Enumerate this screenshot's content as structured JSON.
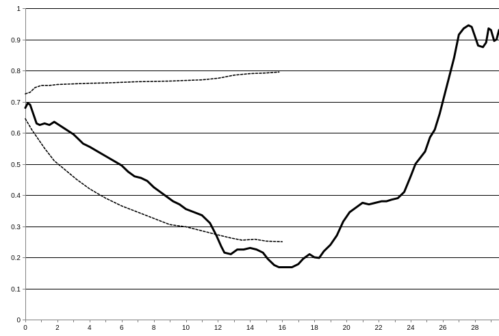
{
  "chart_data": {
    "type": "line",
    "title": "",
    "xlabel": "",
    "ylabel": "",
    "xlim": [
      0,
      29.5
    ],
    "ylim": [
      0,
      1
    ],
    "grid": "horizontal",
    "legend": "none",
    "x_ticks": [
      0,
      2,
      4,
      6,
      8,
      10,
      12,
      14,
      16,
      18,
      20,
      22,
      24,
      26,
      28
    ],
    "y_ticks": [
      0,
      0.1,
      0.2,
      0.3,
      0.4,
      0.5,
      0.6,
      0.7,
      0.8,
      0.9,
      1
    ],
    "x_tick_labels": [
      "0",
      "2",
      "4",
      "6",
      "8",
      "10",
      "12",
      "14",
      "16",
      "18",
      "20",
      "22",
      "24",
      "26",
      "28"
    ],
    "y_tick_labels": [
      "0",
      "0.1",
      "0.2",
      "0.3",
      "0.4",
      "0.5",
      "0.6",
      "0.7",
      "0.8",
      "0.9",
      "1"
    ],
    "colors": {
      "series": "#000000",
      "grid": "#000000",
      "axis": "#808080",
      "background": "#ffffff"
    },
    "series": [
      {
        "style": "solid",
        "points": [
          [
            0,
            0.68
          ],
          [
            0.15,
            0.695
          ],
          [
            0.3,
            0.69
          ],
          [
            0.5,
            0.66
          ],
          [
            0.7,
            0.63
          ],
          [
            0.9,
            0.625
          ],
          [
            1.2,
            0.63
          ],
          [
            1.5,
            0.625
          ],
          [
            1.8,
            0.635
          ],
          [
            2.1,
            0.625
          ],
          [
            2.4,
            0.615
          ],
          [
            2.7,
            0.605
          ],
          [
            3.0,
            0.595
          ],
          [
            3.3,
            0.58
          ],
          [
            3.6,
            0.565
          ],
          [
            4.0,
            0.555
          ],
          [
            4.5,
            0.54
          ],
          [
            5.0,
            0.525
          ],
          [
            5.5,
            0.51
          ],
          [
            6.0,
            0.495
          ],
          [
            6.4,
            0.475
          ],
          [
            6.8,
            0.46
          ],
          [
            7.2,
            0.455
          ],
          [
            7.6,
            0.445
          ],
          [
            8.0,
            0.425
          ],
          [
            8.4,
            0.41
          ],
          [
            8.8,
            0.395
          ],
          [
            9.2,
            0.38
          ],
          [
            9.6,
            0.37
          ],
          [
            10.0,
            0.355
          ],
          [
            10.5,
            0.345
          ],
          [
            11.0,
            0.335
          ],
          [
            11.5,
            0.31
          ],
          [
            11.9,
            0.27
          ],
          [
            12.2,
            0.235
          ],
          [
            12.4,
            0.215
          ],
          [
            12.8,
            0.21
          ],
          [
            13.2,
            0.225
          ],
          [
            13.6,
            0.225
          ],
          [
            14.0,
            0.23
          ],
          [
            14.4,
            0.225
          ],
          [
            14.8,
            0.215
          ],
          [
            15.1,
            0.195
          ],
          [
            15.5,
            0.175
          ],
          [
            15.8,
            0.168
          ],
          [
            16.2,
            0.168
          ],
          [
            16.6,
            0.168
          ],
          [
            17.0,
            0.178
          ],
          [
            17.3,
            0.195
          ],
          [
            17.7,
            0.21
          ],
          [
            18.0,
            0.2
          ],
          [
            18.3,
            0.198
          ],
          [
            18.6,
            0.22
          ],
          [
            19.0,
            0.24
          ],
          [
            19.4,
            0.27
          ],
          [
            19.8,
            0.315
          ],
          [
            20.2,
            0.345
          ],
          [
            20.6,
            0.36
          ],
          [
            21.0,
            0.375
          ],
          [
            21.4,
            0.37
          ],
          [
            21.8,
            0.375
          ],
          [
            22.2,
            0.38
          ],
          [
            22.5,
            0.38
          ],
          [
            22.8,
            0.385
          ],
          [
            23.2,
            0.39
          ],
          [
            23.6,
            0.41
          ],
          [
            24.0,
            0.46
          ],
          [
            24.3,
            0.5
          ],
          [
            24.6,
            0.52
          ],
          [
            24.9,
            0.54
          ],
          [
            25.2,
            0.585
          ],
          [
            25.5,
            0.61
          ],
          [
            25.8,
            0.66
          ],
          [
            26.1,
            0.72
          ],
          [
            26.4,
            0.78
          ],
          [
            26.7,
            0.84
          ],
          [
            27.0,
            0.915
          ],
          [
            27.3,
            0.935
          ],
          [
            27.6,
            0.945
          ],
          [
            27.8,
            0.94
          ],
          [
            28.0,
            0.91
          ],
          [
            28.2,
            0.88
          ],
          [
            28.5,
            0.875
          ],
          [
            28.7,
            0.89
          ],
          [
            28.85,
            0.935
          ],
          [
            29.0,
            0.93
          ],
          [
            29.2,
            0.895
          ],
          [
            29.35,
            0.9
          ],
          [
            29.5,
            0.93
          ]
        ]
      },
      {
        "style": "dotted",
        "points": [
          [
            0,
            0.725
          ],
          [
            0.3,
            0.73
          ],
          [
            0.6,
            0.745
          ],
          [
            1.0,
            0.752
          ],
          [
            1.5,
            0.752
          ],
          [
            2.0,
            0.755
          ],
          [
            3.0,
            0.757
          ],
          [
            4.0,
            0.759
          ],
          [
            5.0,
            0.76
          ],
          [
            6.0,
            0.762
          ],
          [
            7.0,
            0.764
          ],
          [
            8.0,
            0.765
          ],
          [
            9.0,
            0.766
          ],
          [
            10.0,
            0.768
          ],
          [
            11.0,
            0.77
          ],
          [
            12.0,
            0.775
          ],
          [
            13.0,
            0.785
          ],
          [
            14.0,
            0.79
          ],
          [
            15.0,
            0.792
          ],
          [
            15.8,
            0.795
          ]
        ]
      },
      {
        "style": "dotted",
        "points": [
          [
            0,
            0.645
          ],
          [
            0.4,
            0.61
          ],
          [
            0.8,
            0.58
          ],
          [
            1.2,
            0.55
          ],
          [
            1.8,
            0.51
          ],
          [
            2.5,
            0.48
          ],
          [
            3.2,
            0.45
          ],
          [
            4.0,
            0.42
          ],
          [
            5.0,
            0.39
          ],
          [
            6.0,
            0.365
          ],
          [
            7.0,
            0.345
          ],
          [
            8.0,
            0.325
          ],
          [
            9.0,
            0.305
          ],
          [
            10.0,
            0.298
          ],
          [
            11.0,
            0.285
          ],
          [
            12.0,
            0.272
          ],
          [
            12.8,
            0.262
          ],
          [
            13.5,
            0.255
          ],
          [
            14.3,
            0.258
          ],
          [
            15.0,
            0.252
          ],
          [
            16.0,
            0.25
          ]
        ]
      }
    ]
  }
}
